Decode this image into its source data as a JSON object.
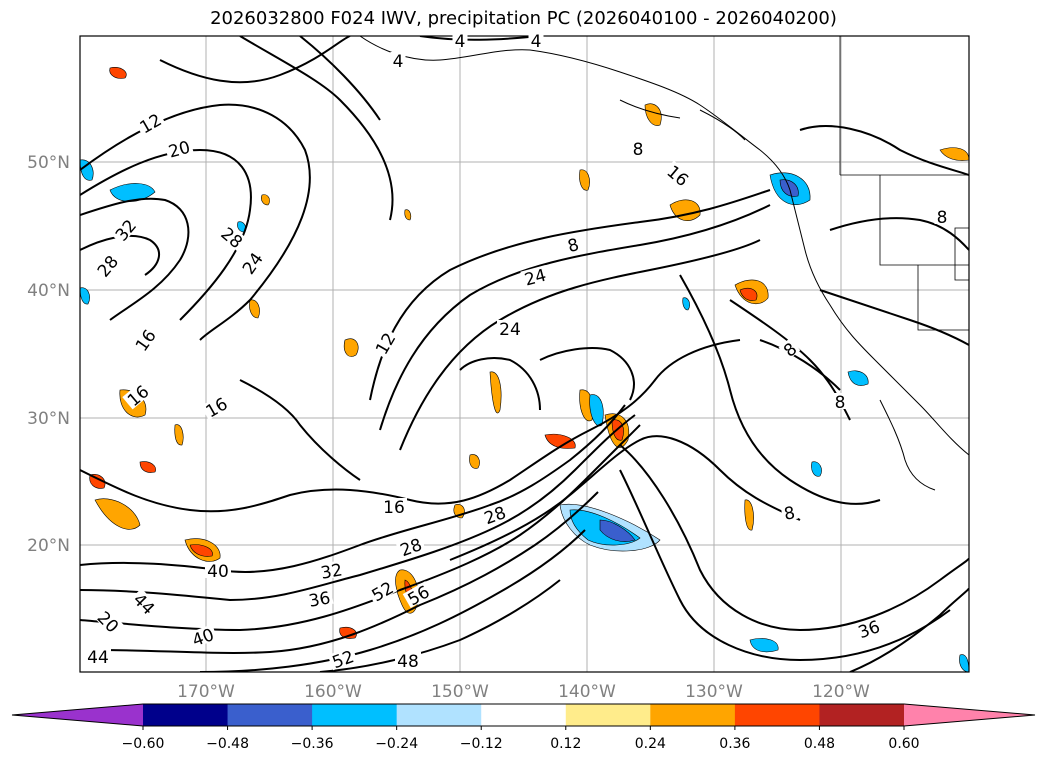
{
  "title": "2026032800 F024 IWV, precipitation PC (2026040100 - 2026040200)",
  "map": {
    "lat_labels": [
      "50°N",
      "40°N",
      "30°N",
      "20°N"
    ],
    "lon_labels": [
      "170°W",
      "160°W",
      "150°W",
      "140°W",
      "130°W",
      "120°W"
    ],
    "contour_labels": [
      "4",
      "4",
      "4",
      "12",
      "20",
      "32",
      "28",
      "28",
      "24",
      "16",
      "16",
      "16",
      "12",
      "8",
      "16",
      "24",
      "8",
      "8",
      "8",
      "24",
      "16",
      "28",
      "28",
      "32",
      "36",
      "40",
      "40",
      "44",
      "52",
      "56",
      "52",
      "48",
      "44",
      "36",
      "20",
      "8",
      "8"
    ]
  },
  "colorbar": {
    "ticks": [
      "−0.60",
      "−0.48",
      "−0.36",
      "−0.24",
      "−0.12",
      "0.12",
      "0.24",
      "0.36",
      "0.48",
      "0.60"
    ],
    "colors": [
      "#9a32cd",
      "#00008b",
      "#3a5fcd",
      "#00bfff",
      "#b0e2ff",
      "#ffffff",
      "#ffec8b",
      "#ffa500",
      "#ff4500",
      "#b22222",
      "#ff82ab"
    ]
  }
}
